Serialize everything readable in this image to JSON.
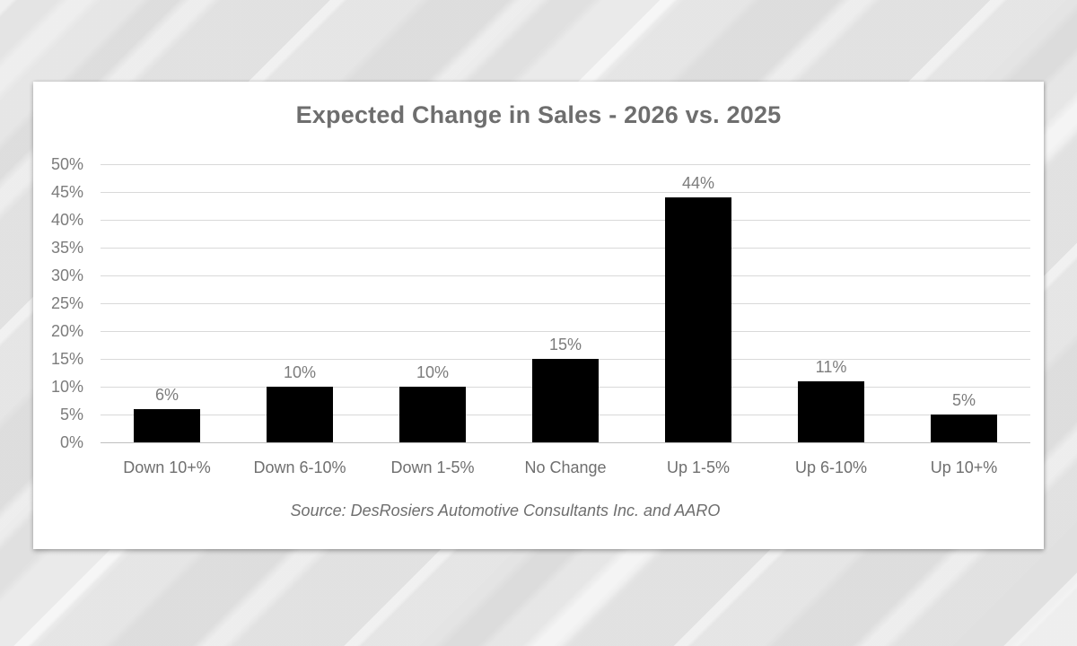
{
  "chart": {
    "title": "Expected Change in Sales - 2026 vs. 2025",
    "source_note": "Source: DesRosiers Automotive Consultants Inc. and AARO"
  },
  "chart_data": {
    "type": "bar",
    "title": "Expected Change in Sales - 2026 vs. 2025",
    "categories": [
      "Down 10+%",
      "Down 6-10%",
      "Down 1-5%",
      "No Change",
      "Up 1-5%",
      "Up 6-10%",
      "Up 10+%"
    ],
    "values": [
      6,
      10,
      10,
      15,
      44,
      11,
      5
    ],
    "data_labels": [
      "6%",
      "10%",
      "10%",
      "15%",
      "44%",
      "11%",
      "5%"
    ],
    "xlabel": "",
    "ylabel": "",
    "ylim": [
      0,
      50
    ],
    "ytick_step": 5,
    "ytick_labels": [
      "0%",
      "5%",
      "10%",
      "15%",
      "20%",
      "25%",
      "30%",
      "35%",
      "40%",
      "45%",
      "50%"
    ],
    "grid": true,
    "legend": "none",
    "bar_color": "#000000",
    "gridline_color": "#d9d9d9",
    "label_color": "#7c7c7c",
    "title_color": "#6e6e6e",
    "source_note": "Source: DesRosiers Automotive Consultants Inc. and AARO"
  }
}
